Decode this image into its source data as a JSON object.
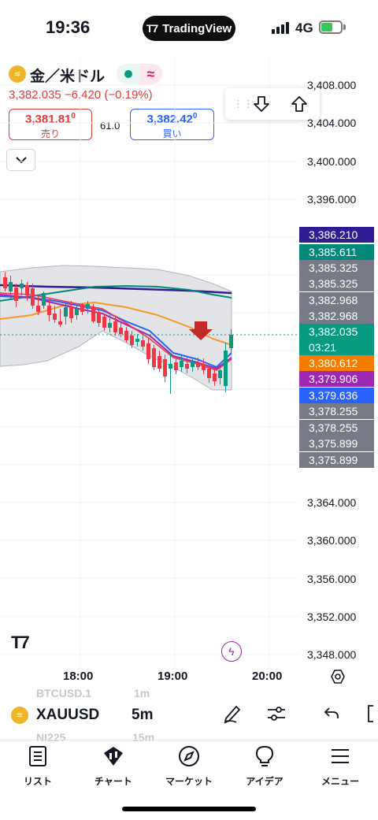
{
  "status": {
    "time": "19:36",
    "network": "4G",
    "app_pill": "TradingView"
  },
  "symbol": {
    "name": "金／米ドル",
    "price_line": "3,382.035 −6.420 (−0.19%)",
    "sell": {
      "price": "3,381.81",
      "sup": "0",
      "label": "売り"
    },
    "buy": {
      "price": "3,382.42",
      "sup": "0",
      "label": "買い"
    },
    "spread": "61.0",
    "collapse_icon": "chevron-down-icon"
  },
  "price_scale": {
    "ticks": [
      "3,408.000",
      "3,404.000",
      "3,400.000",
      "3,396.000",
      "3,364.000",
      "3,360.000",
      "3,356.000",
      "3,352.000",
      "3,348.000"
    ],
    "labels": [
      {
        "text": "3,386.210",
        "color": "#311b92"
      },
      {
        "text": "3,385.611",
        "color": "#00897b"
      },
      {
        "text": "3,385.325",
        "color": "#787b86"
      },
      {
        "text": "3,385.325",
        "color": "#787b86"
      },
      {
        "text": "3,382.968",
        "color": "#787b86"
      },
      {
        "text": "3,382.968",
        "color": "#787b86"
      },
      {
        "text": "3,380.612",
        "color": "#f57c00"
      },
      {
        "text": "3,379.906",
        "color": "#9c27b0"
      },
      {
        "text": "3,379.636",
        "color": "#2962ff"
      },
      {
        "text": "3,378.255",
        "color": "#787b86"
      },
      {
        "text": "3,378.255",
        "color": "#787b86"
      },
      {
        "text": "3,375.899",
        "color": "#787b86"
      },
      {
        "text": "3,375.899",
        "color": "#787b86"
      }
    ],
    "current": {
      "price": "3,382.035",
      "countdown": "03:21",
      "color": "#089981"
    }
  },
  "time_axis": {
    "ticks": [
      "18:00",
      "19:00",
      "20:00"
    ]
  },
  "toolbar": {
    "symbol": "XAUUSD",
    "interval": "5m",
    "faded_above": [
      "BTCUSD.1",
      "1m"
    ],
    "faded_below": [
      "NI225",
      "15m"
    ]
  },
  "nav": [
    {
      "label": "リスト",
      "icon": "list-icon"
    },
    {
      "label": "チャート",
      "icon": "chart-icon"
    },
    {
      "label": "マーケット",
      "icon": "compass-icon"
    },
    {
      "label": "アイデア",
      "icon": "lightbulb-icon"
    },
    {
      "label": "メニュー",
      "icon": "menu-icon"
    }
  ],
  "colors": {
    "up": "#089981",
    "down": "#f23645",
    "accent": "#2962ff"
  }
}
